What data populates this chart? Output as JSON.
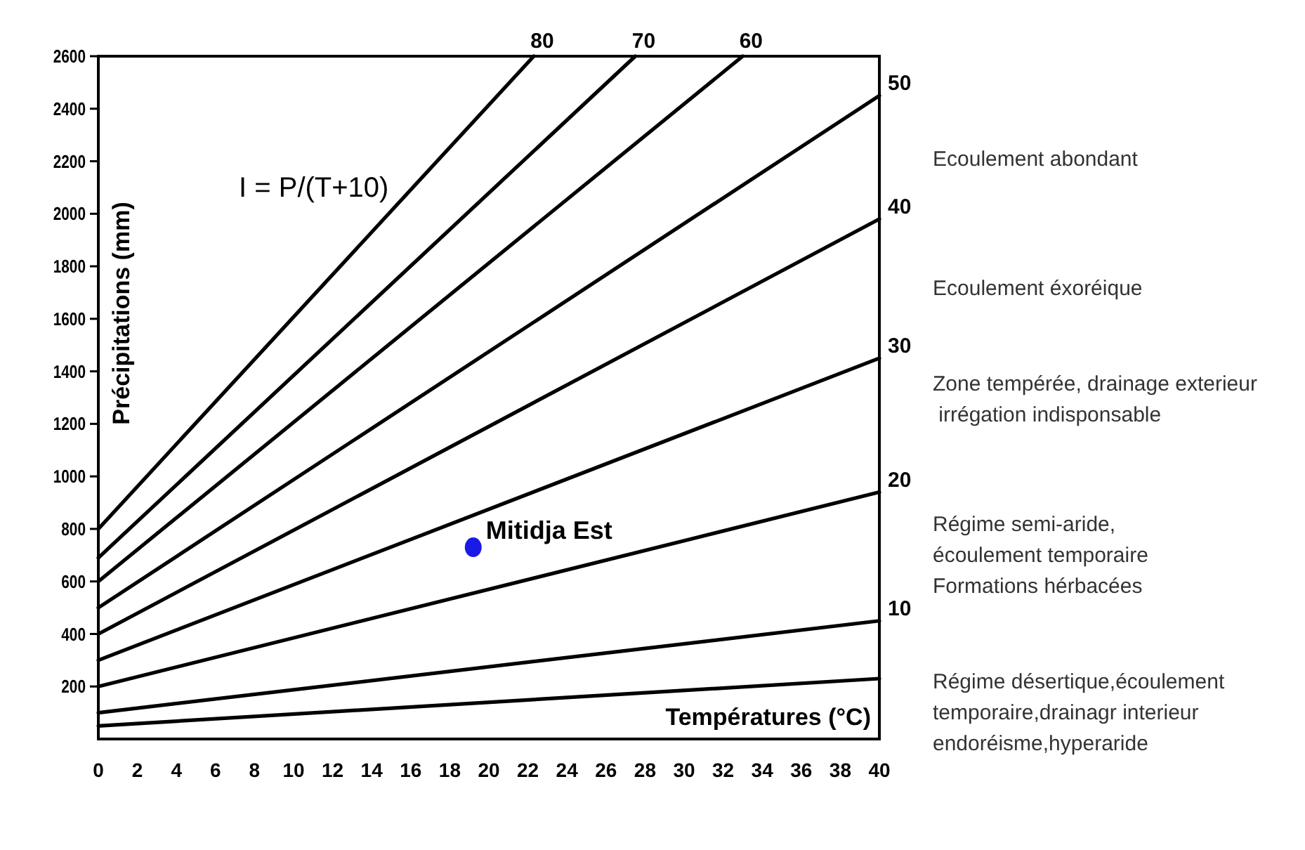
{
  "chart_data": {
    "type": "line",
    "xlabel": "Températures (°C)",
    "ylabel": "Précipitations (mm)",
    "xlim": [
      0,
      40
    ],
    "ylim": [
      0,
      2600
    ],
    "xticks": [
      0,
      2,
      4,
      6,
      8,
      10,
      12,
      14,
      16,
      18,
      20,
      22,
      24,
      26,
      28,
      30,
      32,
      34,
      36,
      38,
      40
    ],
    "yticks": [
      200,
      400,
      600,
      800,
      1000,
      1200,
      1400,
      1600,
      1800,
      2000,
      2200,
      2400,
      2600
    ],
    "grid": false,
    "line_style": "solid",
    "series": [
      {
        "color": "#000000",
        "x": [
          0,
          40
        ],
        "values": [
          50,
          230
        ]
      },
      {
        "name": "10",
        "color": "#000000",
        "x": [
          0,
          40
        ],
        "values": [
          100,
          450
        ]
      },
      {
        "name": "20",
        "color": "#000000",
        "x": [
          0,
          40
        ],
        "values": [
          200,
          940
        ]
      },
      {
        "name": "30",
        "color": "#000000",
        "x": [
          0,
          40
        ],
        "values": [
          300,
          1450
        ]
      },
      {
        "name": "40",
        "color": "#000000",
        "x": [
          0,
          40
        ],
        "values": [
          400,
          1980
        ]
      },
      {
        "name": "50",
        "color": "#000000",
        "x": [
          0,
          40
        ],
        "values": [
          500,
          2450
        ]
      },
      {
        "name": "60",
        "color": "#000000",
        "x": [
          0,
          33
        ],
        "values": [
          600,
          2600
        ]
      },
      {
        "name": "70",
        "color": "#000000",
        "x": [
          0,
          27.5
        ],
        "values": [
          690,
          2600
        ]
      },
      {
        "name": "80",
        "color": "#000000",
        "x": [
          0,
          22.3
        ],
        "values": [
          800,
          2600
        ]
      },
      {
        "name": "Mitidja Est",
        "type": "scatter",
        "marker": "circle",
        "color": "#1a1ae6",
        "x": [
          19.2
        ],
        "values": [
          730
        ]
      }
    ],
    "annotations": [
      "I = P/(T+10)",
      "Ecoulement abondant",
      "Ecoulement éxoréique",
      "Zone tempérée, drainage exterieur\n irrégation indisponsable",
      "Régime semi-aride,\nécoulement temporaire\nFormations hérbacées",
      "Régime désertique,écoulement\ntemporaire,drainagr interieur\nendoréisme,hyperaride"
    ]
  }
}
